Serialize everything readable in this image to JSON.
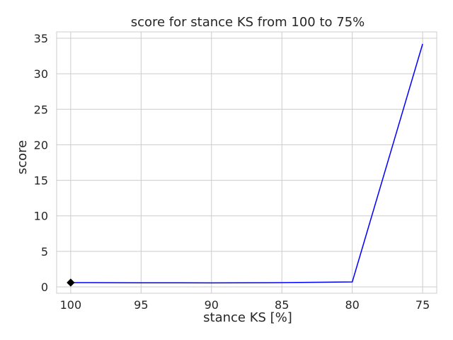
{
  "chart_data": {
    "type": "line",
    "title": "score for stance KS from 100 to 75%",
    "xlabel": "stance KS [%]",
    "ylabel": "score",
    "xlim": [
      101,
      74
    ],
    "ylim": [
      -0.9,
      35.9
    ],
    "x_inverted": true,
    "grid": true,
    "x_ticks": [
      100,
      95,
      90,
      85,
      80,
      75
    ],
    "y_ticks": [
      0,
      5,
      10,
      15,
      20,
      25,
      30,
      35
    ],
    "series": [
      {
        "color": "#0000ff",
        "x": [
          100,
          95,
          90,
          85,
          80,
          75
        ],
        "y": [
          0.6,
          0.58,
          0.56,
          0.6,
          0.7,
          34.2
        ]
      }
    ],
    "marker_point": {
      "x": 100,
      "y": 0.6,
      "shape": "diamond",
      "color": "#000000"
    }
  }
}
